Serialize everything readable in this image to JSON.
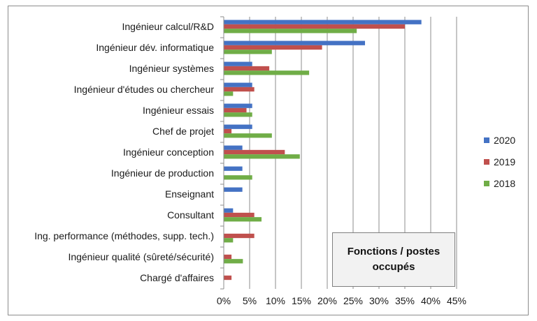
{
  "chart_data": {
    "type": "bar",
    "orientation": "horizontal",
    "title": "Fonctions / postes occupés",
    "categories": [
      "Ingénieur calcul/R&D",
      "Ingénieur dév. informatique",
      "Ingénieur systèmes",
      "Ingénieur d'études ou chercheur",
      "Ingénieur essais",
      "Chef de projet",
      "Ingénieur conception",
      "Ingénieur de production",
      "Enseignant",
      "Consultant",
      "Ing. performance (méthodes, supp. tech.)",
      "Ingénieur qualité (sûreté/sécurité)",
      "Chargé d'affaires"
    ],
    "series": [
      {
        "name": "2020",
        "color": "#4472c4",
        "values": [
          38.2,
          27.3,
          5.5,
          5.5,
          5.5,
          5.5,
          3.6,
          3.6,
          3.6,
          1.8,
          0,
          0,
          0
        ]
      },
      {
        "name": "2019",
        "color": "#c0504d",
        "values": [
          35.0,
          19.0,
          8.8,
          5.9,
          4.4,
          1.5,
          11.8,
          0,
          0,
          5.9,
          5.9,
          1.5,
          1.5
        ]
      },
      {
        "name": "2018",
        "color": "#70ad47",
        "values": [
          25.7,
          9.3,
          16.5,
          1.8,
          5.5,
          9.3,
          14.7,
          5.5,
          0,
          7.3,
          1.8,
          3.7,
          0
        ]
      }
    ],
    "xlim": [
      0,
      45
    ],
    "xticks": [
      "0%",
      "5%",
      "10%",
      "15%",
      "20%",
      "25%",
      "30%",
      "35%",
      "40%",
      "45%"
    ],
    "xlabel": "",
    "ylabel": "",
    "grid": "vertical",
    "legend": "right"
  }
}
